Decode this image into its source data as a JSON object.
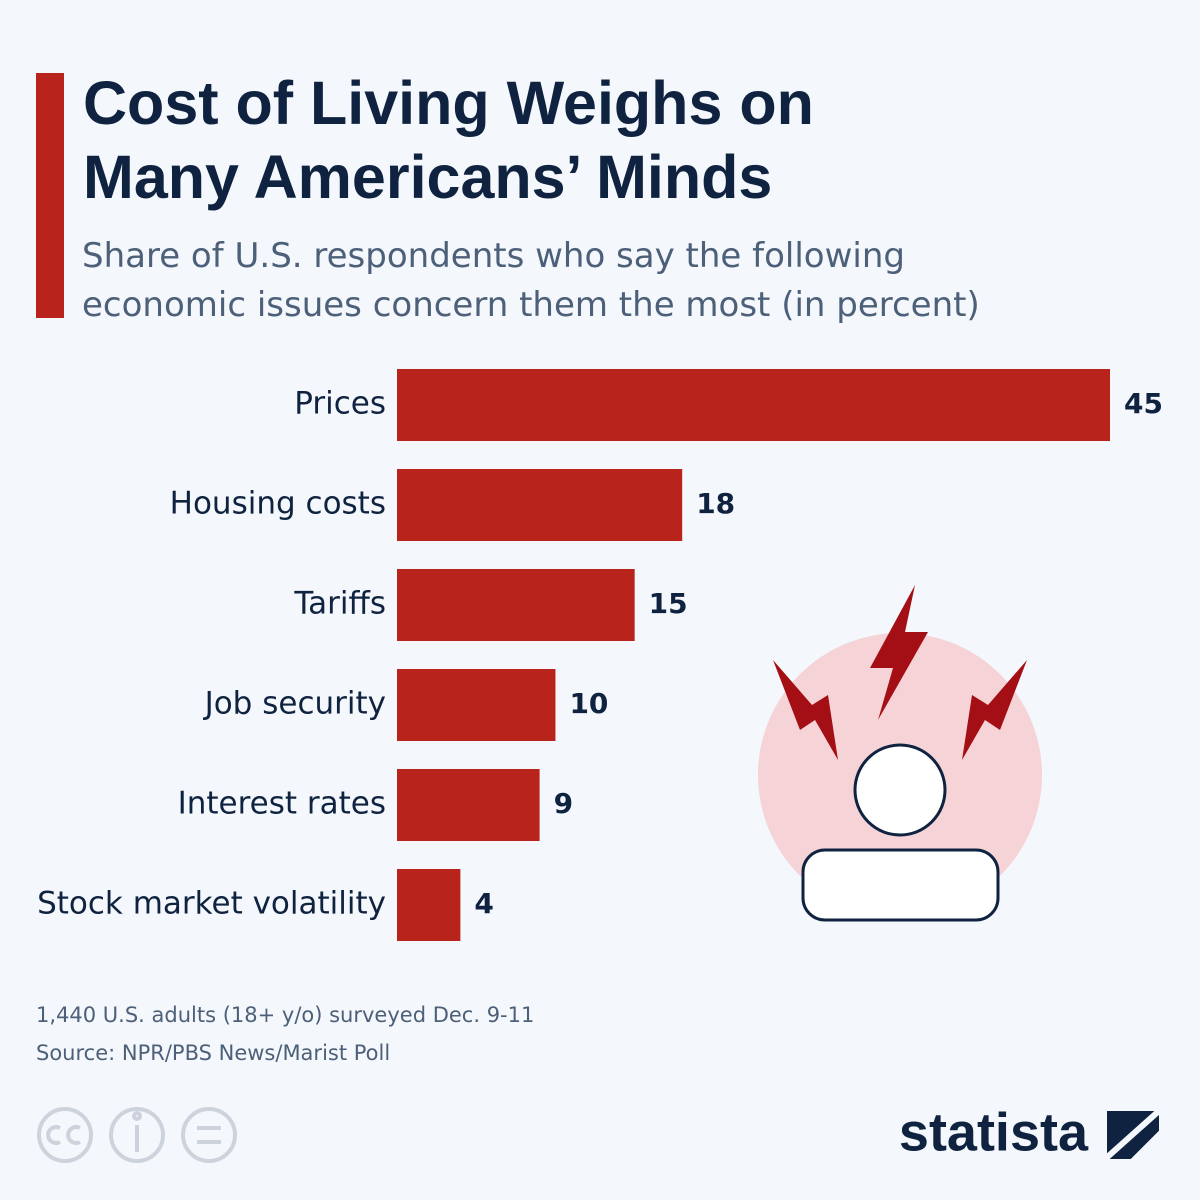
{
  "chart_data": {
    "type": "bar",
    "orientation": "horizontal",
    "title": "Cost of Living Weighs on Many Americans’ Minds",
    "subtitle": "Share of U.S. respondents who say the following economic issues concern them the most (in percent)",
    "categories": [
      "Prices",
      "Housing costs",
      "Tariffs",
      "Job security",
      "Interest rates",
      "Stock market volatility"
    ],
    "values": [
      45,
      18,
      15,
      10,
      9,
      4
    ],
    "color": "#b8241c",
    "note": "1,440 U.S. adults (18+ y/o) surveyed Dec. 9-11",
    "source": "Source: NPR/PBS News/Marist Poll"
  },
  "logo": "statista"
}
